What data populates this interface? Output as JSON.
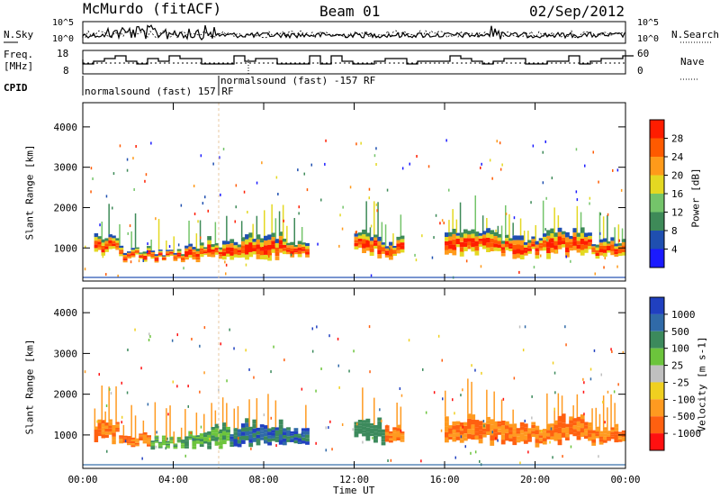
{
  "header": {
    "station": "McMurdo (fitACF)",
    "beam": "Beam 01",
    "date": "02/Sep/2012"
  },
  "status": {
    "nsky_label": "N.Sky",
    "nsky_tick_top": "10^5",
    "nsky_tick_bottom": "10^0",
    "nsearch_label": "N.Search",
    "nsearch_tick_top": "10^5",
    "nsearch_tick_bottom": "10^0",
    "freq_label_top": "Freq.",
    "freq_label_bottom": "[MHz]",
    "freq_tick_top": "18",
    "freq_tick_bottom": "8",
    "nave_label": "Nave",
    "nave_tick_top": "60",
    "nave_tick_bottom": "0",
    "cpid_label": "CPID",
    "cpid_text_1": "normalsound (fast) 157 RF",
    "cpid_text_2": "normalsound (fast) -157 RF"
  },
  "chart_data": [
    {
      "type": "heatmap",
      "title": "",
      "xlabel": "",
      "ylabel": "Slant Range [km]",
      "ylim": [
        180,
        4600
      ],
      "yticks": [
        "1000",
        "2000",
        "3000",
        "4000"
      ],
      "colorbar_label": "Power [dB]",
      "colorbar_ticks": [
        "4",
        "8",
        "12",
        "16",
        "20",
        "24",
        "28"
      ],
      "colors": [
        "#1a1aff",
        "#1f4fb0",
        "#3e8a58",
        "#74c46a",
        "#e4d822",
        "#ff9a1a",
        "#ff5a00",
        "#ff1d00"
      ]
    },
    {
      "type": "heatmap",
      "title": "",
      "xlabel": "Time UT",
      "ylabel": "Slant Range [km]",
      "ylim": [
        180,
        4600
      ],
      "yticks": [
        "1000",
        "2000",
        "3000",
        "4000"
      ],
      "xticks": [
        "00:00",
        "04:00",
        "08:00",
        "12:00",
        "16:00",
        "20:00",
        "00:00"
      ],
      "colorbar_label": "Velocity [m s-1]",
      "colorbar_ticks": [
        "1000",
        "500",
        "100",
        "25",
        "-25",
        "-100",
        "-500",
        "-1000"
      ],
      "colors": [
        "#2040c0",
        "#306aa8",
        "#3c8a5c",
        "#6cc43c",
        "#c0c0c0",
        "#f0d020",
        "#ff9a20",
        "#ff6010",
        "#ff1010"
      ]
    }
  ]
}
